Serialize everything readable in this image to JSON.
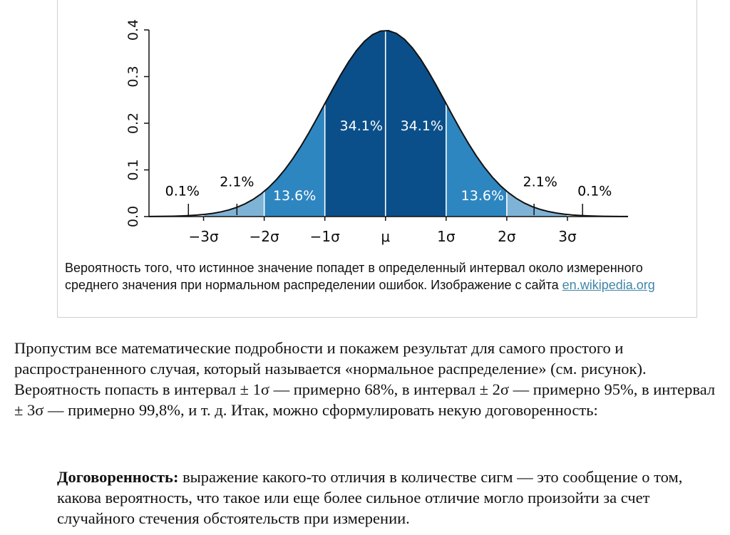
{
  "chart_data": {
    "type": "area",
    "distribution": "normal",
    "x_ticks": [
      "−3σ",
      "−2σ",
      "−1σ",
      "μ",
      "1σ",
      "2σ",
      "3σ"
    ],
    "x_tick_values": [
      -3,
      -2,
      -1,
      0,
      1,
      2,
      3
    ],
    "y_ticks": [
      "0.0",
      "0.1",
      "0.2",
      "0.3",
      "0.4"
    ],
    "y_tick_values": [
      0.0,
      0.1,
      0.2,
      0.3,
      0.4
    ],
    "xlim": [
      -3.9,
      4.0
    ],
    "ylim": [
      0,
      0.4
    ],
    "regions": [
      {
        "from": -3,
        "to": -2,
        "color": "#7fb3d5"
      },
      {
        "from": -2,
        "to": -1,
        "color": "#2e86c1"
      },
      {
        "from": -1,
        "to": 0,
        "color": "#0b4f8a"
      },
      {
        "from": 0,
        "to": 1,
        "color": "#0b4f8a"
      },
      {
        "from": 1,
        "to": 2,
        "color": "#2e86c1"
      },
      {
        "from": 2,
        "to": 3,
        "color": "#7fb3d5"
      }
    ],
    "annotations": [
      {
        "text": "0.1%",
        "x": -3.35,
        "y": 0.045,
        "color": "#000000"
      },
      {
        "text": "2.1%",
        "x": -2.45,
        "y": 0.065,
        "color": "#000000"
      },
      {
        "text": "13.6%",
        "x": -1.5,
        "y": 0.035,
        "color": "#ffffff"
      },
      {
        "text": "34.1%",
        "x": -0.4,
        "y": 0.185,
        "color": "#ffffff"
      },
      {
        "text": "34.1%",
        "x": 0.6,
        "y": 0.185,
        "color": "#ffffff"
      },
      {
        "text": "13.6%",
        "x": 1.6,
        "y": 0.035,
        "color": "#ffffff"
      },
      {
        "text": "2.1%",
        "x": 2.55,
        "y": 0.065,
        "color": "#000000"
      },
      {
        "text": "0.1%",
        "x": 3.45,
        "y": 0.045,
        "color": "#000000"
      }
    ],
    "tail_markers": [
      -3.25,
      -2.45,
      2.45,
      3.25
    ]
  },
  "caption": {
    "text": "Вероятность того, что истинное значение попадет в определенный интервал около измеренного среднего значения при нормальном распределении ошибок. Изображение с сайта ",
    "link": "en.wikipedia.org"
  },
  "paragraph": "Пропустим все математические подробности и покажем результат для самого простого и распространенного случая, который называется «нормальное распределение» (см. рисунок). Вероятность попасть в интервал ± 1σ — примерно 68%, в интервал ± 2σ — примерно 95%, в интервал ± 3σ — примерно 99,8%, и т. д. Итак, можно сформулировать некую договоренность:",
  "quote": {
    "label": "Договоренность:",
    "text": " выражение какого-то отличия в количестве сигм — это сообщение о том, какова вероятность, что такое или еще более сильное отличие могло произойти за счет случайного стечения обстоятельств при измерении."
  }
}
